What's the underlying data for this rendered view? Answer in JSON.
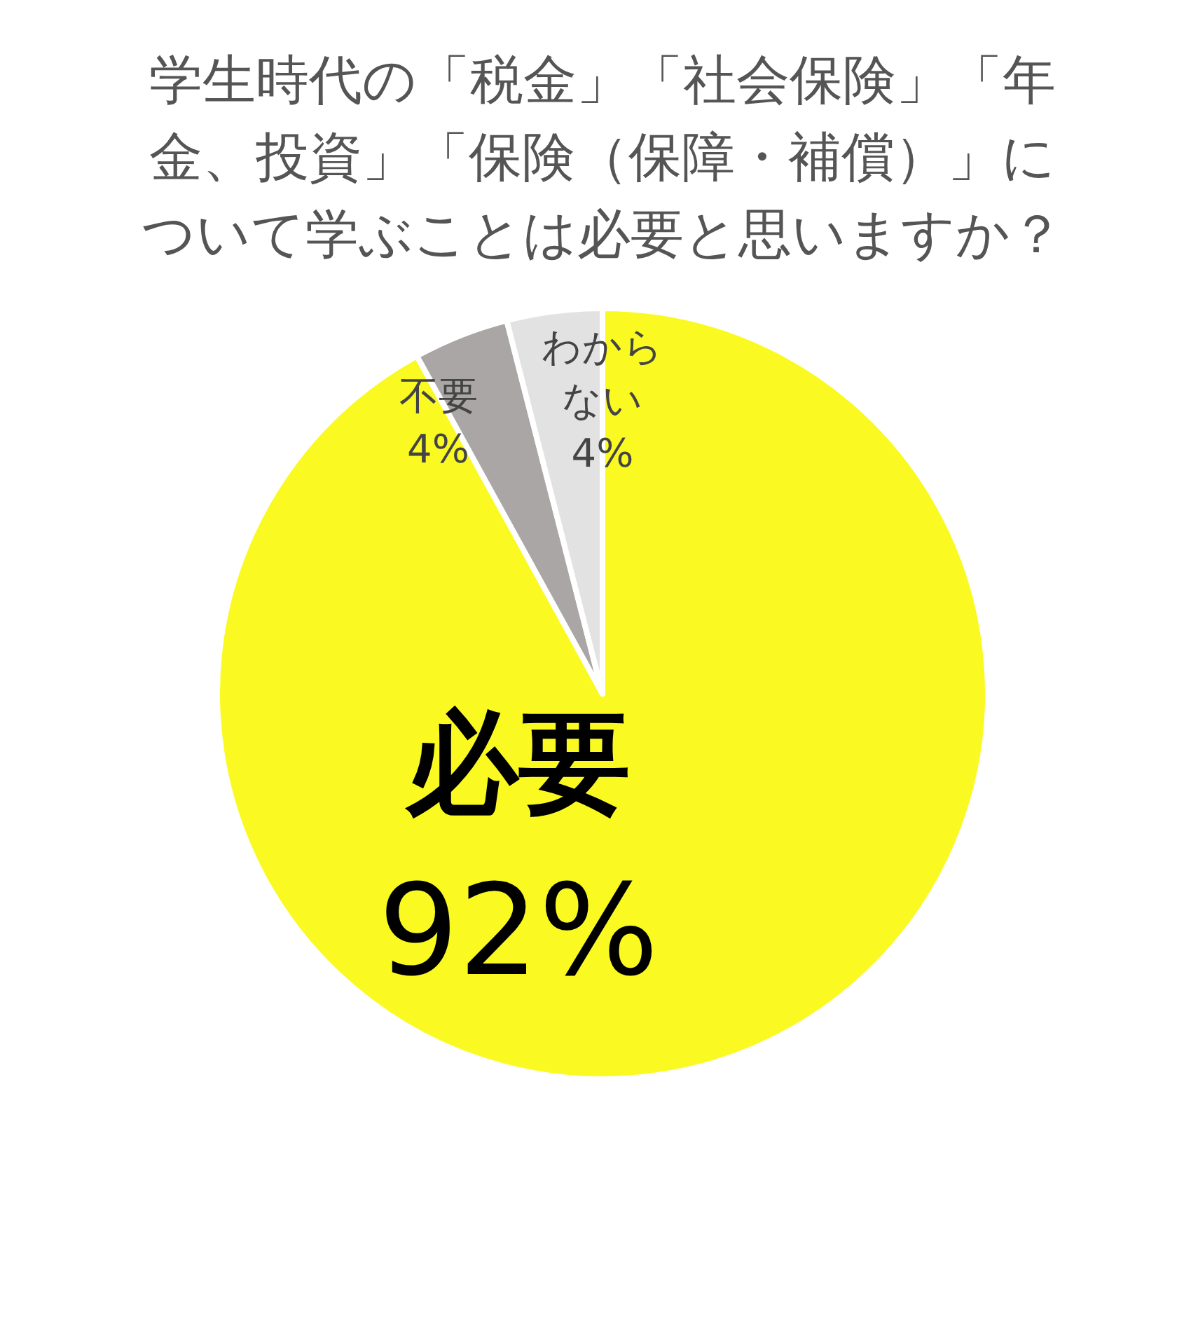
{
  "chart_data": {
    "type": "pie",
    "title": "学生時代の「税金」「社会保険」「年金、投資」「保険（保障・補償）」について学ぶことは必要と思いますか？",
    "categories": [
      "必要",
      "不要",
      "わからない"
    ],
    "values": [
      92,
      4,
      4
    ],
    "value_labels": [
      "92%",
      "4%",
      "4%"
    ],
    "colors": [
      "#fafa22",
      "#aaa6a6",
      "#e2e2e2"
    ],
    "legend": false
  }
}
